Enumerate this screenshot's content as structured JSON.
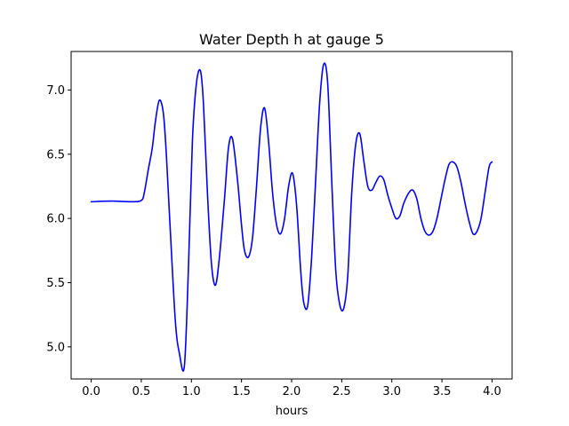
{
  "chart_data": {
    "type": "line",
    "title": "Water Depth h at gauge 5",
    "xlabel": "hours",
    "ylabel": "",
    "xlim": [
      -0.2,
      4.2
    ],
    "ylim": [
      4.75,
      7.3
    ],
    "xticks": [
      0.0,
      0.5,
      1.0,
      1.5,
      2.0,
      2.5,
      3.0,
      3.5,
      4.0
    ],
    "xtick_labels": [
      "0.0",
      "0.5",
      "1.0",
      "1.5",
      "2.0",
      "2.5",
      "3.0",
      "3.5",
      "4.0"
    ],
    "yticks": [
      5.0,
      5.5,
      6.0,
      6.5,
      7.0
    ],
    "ytick_labels": [
      "5.0",
      "5.5",
      "6.0",
      "6.5",
      "7.0"
    ],
    "grid": false,
    "series": [
      {
        "color": "#0000ff",
        "x": [
          0.0,
          0.2,
          0.4,
          0.5,
          0.53,
          0.57,
          0.61,
          0.64,
          0.68,
          0.72,
          0.75,
          0.79,
          0.84,
          0.88,
          0.93,
          0.97,
          1.01,
          1.05,
          1.09,
          1.12,
          1.16,
          1.2,
          1.24,
          1.28,
          1.33,
          1.37,
          1.41,
          1.46,
          1.5,
          1.53,
          1.57,
          1.61,
          1.65,
          1.69,
          1.73,
          1.77,
          1.81,
          1.85,
          1.89,
          1.93,
          1.97,
          2.01,
          2.05,
          2.09,
          2.12,
          2.16,
          2.2,
          2.24,
          2.28,
          2.32,
          2.36,
          2.4,
          2.44,
          2.48,
          2.52,
          2.56,
          2.6,
          2.64,
          2.68,
          2.72,
          2.76,
          2.8,
          2.84,
          2.88,
          2.92,
          2.96,
          3.0,
          3.04,
          3.08,
          3.12,
          3.17,
          3.21,
          3.25,
          3.29,
          3.33,
          3.37,
          3.41,
          3.45,
          3.49,
          3.53,
          3.57,
          3.61,
          3.65,
          3.69,
          3.73,
          3.77,
          3.81,
          3.85,
          3.89,
          3.93,
          3.97,
          4.0
        ],
        "y": [
          6.13,
          6.135,
          6.13,
          6.14,
          6.2,
          6.38,
          6.55,
          6.75,
          6.92,
          6.82,
          6.5,
          5.9,
          5.2,
          4.95,
          4.85,
          5.6,
          6.6,
          7.05,
          7.15,
          6.9,
          6.2,
          5.65,
          5.48,
          5.7,
          6.15,
          6.55,
          6.62,
          6.3,
          5.95,
          5.75,
          5.7,
          5.85,
          6.25,
          6.7,
          6.86,
          6.6,
          6.2,
          5.95,
          5.88,
          6.0,
          6.25,
          6.35,
          6.1,
          5.6,
          5.35,
          5.32,
          5.7,
          6.3,
          6.9,
          7.2,
          7.05,
          6.3,
          5.6,
          5.33,
          5.3,
          5.55,
          6.2,
          6.58,
          6.66,
          6.45,
          6.25,
          6.22,
          6.28,
          6.33,
          6.3,
          6.18,
          6.08,
          6.0,
          6.02,
          6.12,
          6.2,
          6.22,
          6.15,
          6.0,
          5.9,
          5.87,
          5.9,
          6.0,
          6.15,
          6.3,
          6.42,
          6.44,
          6.4,
          6.28,
          6.12,
          5.98,
          5.88,
          5.9,
          6.0,
          6.2,
          6.4,
          6.44
        ]
      }
    ]
  }
}
